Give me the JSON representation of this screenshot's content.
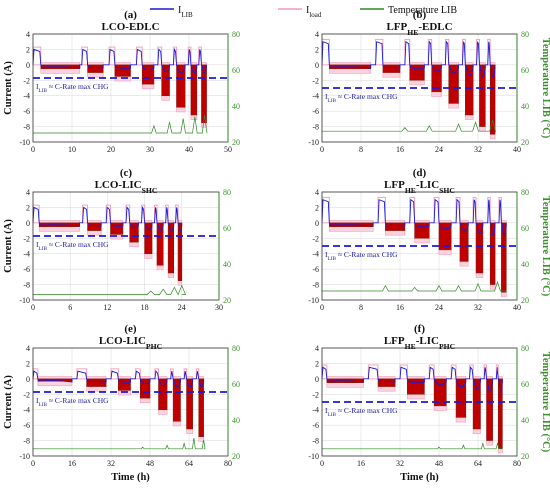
{
  "legend": {
    "items": [
      {
        "label": "I",
        "sub": "LIB",
        "color": "#1a1ad6",
        "kind": "line"
      },
      {
        "label": "I",
        "sub": "load",
        "color": "#f39ab6",
        "kind": "line"
      },
      {
        "label": "Temperature LIB",
        "sub": "",
        "color": "#2e8b22",
        "kind": "line"
      }
    ]
  },
  "colors": {
    "lib_current": "#1a1ad6",
    "load_current": "#f39ab6",
    "discharge_fill": "#c00000",
    "discharge_fill_dark": "#7a1a08",
    "temperature": "#2e8b22",
    "cutoff_line": "#1a1ad6"
  },
  "chart_data": [
    {
      "type": "line",
      "letter": "(a)",
      "title_main": "LCO-EDLC",
      "title_sub": "",
      "ylabel": "Current (A)",
      "xlabel": "",
      "y2label": "",
      "xlim": [
        0,
        50
      ],
      "xticks": [
        "0",
        "10",
        "20",
        "30",
        "40",
        "50"
      ],
      "ylim": [
        -10,
        4
      ],
      "yticks": [
        "-10",
        "-8",
        "-6",
        "-4",
        "-2",
        "0",
        "2",
        "4"
      ],
      "y2lim": [
        20,
        80
      ],
      "y2ticks": [
        "20",
        "40",
        "60",
        "80"
      ],
      "annotation": {
        "main": "I",
        "sub": "LIB",
        "rest": " ≈ C-Rate max CHG"
      },
      "cutoff_current": -1.7,
      "cycles": [
        {
          "t": 0,
          "t_rest": 2,
          "t_dis_end": 12,
          "discharge": -0.5,
          "charge": 2.0
        },
        {
          "t": 12.5,
          "t_rest": 14,
          "t_dis_end": 18,
          "discharge": -1.0,
          "charge": 2.0
        },
        {
          "t": 19.5,
          "t_rest": 21,
          "t_dis_end": 25,
          "discharge": -1.5,
          "charge": 2.0
        },
        {
          "t": 26.5,
          "t_rest": 28,
          "t_dis_end": 31,
          "discharge": -2.5,
          "charge": 2.0
        },
        {
          "t": 32,
          "t_rest": 33,
          "t_dis_end": 35,
          "discharge": -4.0,
          "charge": 2.0
        },
        {
          "t": 36,
          "t_rest": 36.8,
          "t_dis_end": 39,
          "discharge": -5.5,
          "charge": 2.0
        },
        {
          "t": 39.8,
          "t_rest": 40.5,
          "t_dis_end": 42,
          "discharge": -6.5,
          "charge": 2.0
        },
        {
          "t": 42.5,
          "t_rest": 43.2,
          "t_dis_end": 44.5,
          "discharge": -7.5,
          "charge": 2.0
        }
      ],
      "temp_base": 25,
      "temp_peaks": [
        [
          31,
          29
        ],
        [
          35,
          31
        ],
        [
          38.5,
          33
        ],
        [
          41.5,
          34
        ],
        [
          44,
          35
        ]
      ]
    },
    {
      "type": "line",
      "letter": "(b)",
      "title_main": "LFP",
      "title_sub": "HE",
      "title_rest": "-EDLC",
      "ylabel": "",
      "xlabel": "",
      "y2label": "Temperature LIB (°C)",
      "xlim": [
        0,
        40
      ],
      "xticks": [
        "0",
        "8",
        "16",
        "24",
        "32",
        "40"
      ],
      "ylim": [
        -10,
        4
      ],
      "yticks": [
        "-10",
        "-8",
        "-6",
        "-4",
        "-2",
        "0",
        "2",
        "4"
      ],
      "y2lim": [
        20,
        80
      ],
      "y2ticks": [
        "20",
        "40",
        "60",
        "80"
      ],
      "annotation": {
        "main": "I",
        "sub": "LIB",
        "rest": " ≈ C-Rate max CHG"
      },
      "cutoff_current": -3.0,
      "cycles": [
        {
          "t": 0,
          "t_rest": 1.5,
          "t_dis_end": 10,
          "discharge": -0.5,
          "charge": 3.0
        },
        {
          "t": 11,
          "t_rest": 12.5,
          "t_dis_end": 16,
          "discharge": -1.0,
          "charge": 3.0
        },
        {
          "t": 17,
          "t_rest": 18,
          "t_dis_end": 21,
          "discharge": -2.0,
          "charge": 3.0
        },
        {
          "t": 21.8,
          "t_rest": 22.5,
          "t_dis_end": 24.5,
          "discharge": -3.5,
          "charge": 3.0
        },
        {
          "t": 25.3,
          "t_rest": 26,
          "t_dis_end": 28,
          "discharge": -5.0,
          "charge": 3.0
        },
        {
          "t": 28.8,
          "t_rest": 29.4,
          "t_dis_end": 31,
          "discharge": -6.5,
          "charge": 3.0
        },
        {
          "t": 31.7,
          "t_rest": 32.3,
          "t_dis_end": 33.5,
          "discharge": -8.0,
          "charge": 3.0
        },
        {
          "t": 34,
          "t_rest": 34.5,
          "t_dis_end": 35.5,
          "discharge": -9.0,
          "charge": 3.0
        }
      ],
      "temp_base": 26,
      "temp_peaks": [
        [
          17,
          28
        ],
        [
          22,
          29
        ],
        [
          28,
          30
        ],
        [
          31.5,
          31
        ],
        [
          35,
          32
        ]
      ]
    },
    {
      "type": "line",
      "letter": "(c)",
      "title_main": "LCO-LIC",
      "title_sub": "SHC",
      "title_rest": "",
      "ylabel": "Current (A)",
      "xlabel": "",
      "y2label": "",
      "xlim": [
        0,
        30
      ],
      "xticks": [
        "0",
        "6",
        "12",
        "18",
        "24",
        "30"
      ],
      "ylim": [
        -10,
        4
      ],
      "yticks": [
        "-10",
        "-8",
        "-6",
        "-4",
        "-2",
        "0",
        "2",
        "4"
      ],
      "y2lim": [
        20,
        80
      ],
      "y2ticks": [
        "20",
        "40",
        "60",
        "80"
      ],
      "annotation": {
        "main": "I",
        "sub": "LIB",
        "rest": " ≈ C-Rate max CHG"
      },
      "cutoff_current": -1.7,
      "cycles": [
        {
          "t": 0,
          "t_rest": 1,
          "t_dis_end": 7.5,
          "discharge": -0.5,
          "charge": 2.0
        },
        {
          "t": 8,
          "t_rest": 8.8,
          "t_dis_end": 11,
          "discharge": -1.0,
          "charge": 2.0
        },
        {
          "t": 11.8,
          "t_rest": 12.5,
          "t_dis_end": 14.5,
          "discharge": -1.5,
          "charge": 2.0
        },
        {
          "t": 15,
          "t_rest": 15.6,
          "t_dis_end": 17,
          "discharge": -2.5,
          "charge": 2.0
        },
        {
          "t": 17.5,
          "t_rest": 18,
          "t_dis_end": 19.2,
          "discharge": -4.0,
          "charge": 2.0
        },
        {
          "t": 19.6,
          "t_rest": 20,
          "t_dis_end": 21,
          "discharge": -5.5,
          "charge": 2.0
        },
        {
          "t": 21.4,
          "t_rest": 21.8,
          "t_dis_end": 22.7,
          "discharge": -6.5,
          "charge": 2.0
        },
        {
          "t": 23,
          "t_rest": 23.4,
          "t_dis_end": 24,
          "discharge": -7.5,
          "charge": 2.0
        }
      ],
      "temp_base": 23,
      "temp_peaks": [
        [
          19,
          25
        ],
        [
          21,
          26
        ],
        [
          22.8,
          27
        ],
        [
          24,
          28
        ]
      ]
    },
    {
      "type": "line",
      "letter": "(d)",
      "title_main": "LFP",
      "title_sub": "HE",
      "title_rest": "-LIC",
      "title_sub2": "SHC",
      "ylabel": "",
      "xlabel": "",
      "y2label": "Temperature LIB (°C)",
      "xlim": [
        0,
        40
      ],
      "xticks": [
        "0",
        "8",
        "16",
        "24",
        "32",
        "40"
      ],
      "ylim": [
        -10,
        4
      ],
      "yticks": [
        "-10",
        "-8",
        "-6",
        "-4",
        "-2",
        "0",
        "2",
        "4"
      ],
      "y2lim": [
        20,
        80
      ],
      "y2ticks": [
        "20",
        "40",
        "60",
        "80"
      ],
      "annotation": {
        "main": "I",
        "sub": "LIB",
        "rest": " ≈ C-Rate max CHG"
      },
      "cutoff_current": -3.0,
      "cycles": [
        {
          "t": 0,
          "t_rest": 1.5,
          "t_dis_end": 10.5,
          "discharge": -0.5,
          "charge": 3.0
        },
        {
          "t": 11.5,
          "t_rest": 13,
          "t_dis_end": 17,
          "discharge": -1.0,
          "charge": 3.0
        },
        {
          "t": 18,
          "t_rest": 19,
          "t_dis_end": 22,
          "discharge": -2.0,
          "charge": 3.0
        },
        {
          "t": 23,
          "t_rest": 24,
          "t_dis_end": 26.5,
          "discharge": -3.5,
          "charge": 3.0
        },
        {
          "t": 27.5,
          "t_rest": 28.3,
          "t_dis_end": 30,
          "discharge": -5.0,
          "charge": 3.0
        },
        {
          "t": 31,
          "t_rest": 31.6,
          "t_dis_end": 33,
          "discharge": -6.5,
          "charge": 3.0
        },
        {
          "t": 34,
          "t_rest": 34.5,
          "t_dis_end": 35.5,
          "discharge": -8.0,
          "charge": 3.0
        },
        {
          "t": 36.3,
          "t_rest": 36.8,
          "t_dis_end": 37.8,
          "discharge": -9.0,
          "charge": 3.0
        }
      ],
      "temp_base": 25,
      "temp_peaks": [
        [
          13,
          28
        ],
        [
          19,
          27
        ],
        [
          24,
          28
        ],
        [
          28,
          28
        ],
        [
          32,
          29
        ],
        [
          36,
          30
        ]
      ]
    },
    {
      "type": "line",
      "letter": "(e)",
      "title_main": "LCO-LIC",
      "title_sub": "PHC",
      "title_rest": "",
      "ylabel": "Current (A)",
      "xlabel": "Time (h)",
      "y2label": "",
      "xlim": [
        0,
        80
      ],
      "xticks": [
        "0",
        "16",
        "32",
        "48",
        "64",
        "80"
      ],
      "ylim": [
        -10,
        4
      ],
      "yticks": [
        "-10",
        "-8",
        "-6",
        "-4",
        "-2",
        "0",
        "2",
        "4"
      ],
      "y2lim": [
        20,
        80
      ],
      "y2ticks": [
        "20",
        "40",
        "60",
        "80"
      ],
      "annotation": {
        "main": "I",
        "sub": "LIB",
        "rest": " ≈ C-Rate max CHG"
      },
      "cutoff_current": -1.7,
      "cycles": [
        {
          "t": 0,
          "t_rest": 2,
          "t_dis_end": 16,
          "discharge": -0.3,
          "charge": 1.0
        },
        {
          "t": 18,
          "t_rest": 22,
          "t_dis_end": 30,
          "discharge": -1.0,
          "charge": 1.0
        },
        {
          "t": 32,
          "t_rest": 35,
          "t_dis_end": 40,
          "discharge": -1.5,
          "charge": 1.0
        },
        {
          "t": 42,
          "t_rest": 44,
          "t_dis_end": 48,
          "discharge": -2.5,
          "charge": 1.0
        },
        {
          "t": 50,
          "t_rest": 51.5,
          "t_dis_end": 55,
          "discharge": -4.0,
          "charge": 1.0
        },
        {
          "t": 56.5,
          "t_rest": 57.5,
          "t_dis_end": 60.5,
          "discharge": -5.5,
          "charge": 1.0
        },
        {
          "t": 62,
          "t_rest": 63,
          "t_dis_end": 65.5,
          "discharge": -6.5,
          "charge": 1.0
        },
        {
          "t": 67,
          "t_rest": 68,
          "t_dis_end": 70,
          "discharge": -7.5,
          "charge": 1.0
        }
      ],
      "temp_base": 24,
      "temp_peaks": [
        [
          45,
          25
        ],
        [
          55,
          26
        ],
        [
          62,
          27
        ],
        [
          66,
          30
        ],
        [
          70,
          29
        ]
      ]
    },
    {
      "type": "line",
      "letter": "(f)",
      "title_main": "LFP",
      "title_sub": "HE",
      "title_rest": "-LIC",
      "title_sub2": "PHC",
      "ylabel": "",
      "xlabel": "Time (h)",
      "y2label": "Temperature LIB (°C)",
      "xlim": [
        0,
        80
      ],
      "xticks": [
        "0",
        "16",
        "32",
        "48",
        "64",
        "80"
      ],
      "ylim": [
        -10,
        4
      ],
      "yticks": [
        "-10",
        "-8",
        "-6",
        "-4",
        "-2",
        "0",
        "2",
        "4"
      ],
      "y2lim": [
        20,
        80
      ],
      "y2ticks": [
        "20",
        "40",
        "60",
        "80"
      ],
      "annotation": {
        "main": "I",
        "sub": "LIB",
        "rest": " ≈ C-Rate max CHG"
      },
      "cutoff_current": -3.0,
      "cycles": [
        {
          "t": 0,
          "t_rest": 2,
          "t_dis_end": 17,
          "discharge": -0.5,
          "charge": 1.5
        },
        {
          "t": 19,
          "t_rest": 23,
          "t_dis_end": 30,
          "discharge": -1.0,
          "charge": 1.5
        },
        {
          "t": 32,
          "t_rest": 35,
          "t_dis_end": 42,
          "discharge": -2.0,
          "charge": 1.5
        },
        {
          "t": 44,
          "t_rest": 46,
          "t_dis_end": 51,
          "discharge": -3.5,
          "charge": 1.5
        },
        {
          "t": 53,
          "t_rest": 55,
          "t_dis_end": 59,
          "discharge": -5.0,
          "charge": 1.5
        },
        {
          "t": 60.5,
          "t_rest": 62,
          "t_dis_end": 65,
          "discharge": -6.5,
          "charge": 1.5
        },
        {
          "t": 66.5,
          "t_rest": 67.5,
          "t_dis_end": 70,
          "discharge": -8.0,
          "charge": 1.5
        },
        {
          "t": 71.5,
          "t_rest": 72.3,
          "t_dis_end": 74,
          "discharge": -9.0,
          "charge": 1.5
        }
      ],
      "temp_base": 24,
      "temp_peaks": [
        [
          48,
          25
        ],
        [
          58,
          26
        ],
        [
          66,
          27
        ],
        [
          72,
          27
        ]
      ]
    }
  ]
}
